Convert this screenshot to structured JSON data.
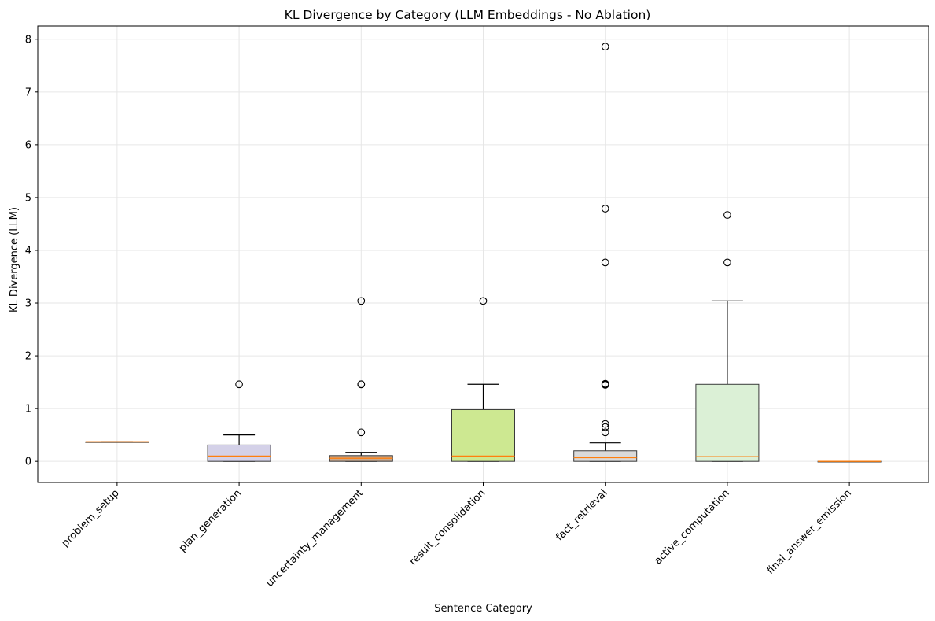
{
  "chart_data": {
    "type": "boxplot",
    "title": "KL Divergence by Category (LLM Embeddings - No Ablation)",
    "xlabel": "Sentence Category",
    "ylabel": "KL Divergence (LLM)",
    "ylim": [
      -0.4,
      8.25
    ],
    "yticks": [
      0,
      1,
      2,
      3,
      4,
      5,
      6,
      7,
      8
    ],
    "grid": true,
    "median_color": "#ff7f0e",
    "categories": [
      {
        "name": "problem_setup",
        "whisker_low": 0.37,
        "q1": 0.37,
        "median": 0.37,
        "q3": 0.37,
        "whisker_high": 0.37,
        "fliers": [],
        "color": "#c7e9c0"
      },
      {
        "name": "plan_generation",
        "whisker_low": 0.0,
        "q1": 0.0,
        "median": 0.1,
        "q3": 0.31,
        "whisker_high": 0.5,
        "fliers": [
          1.46
        ],
        "color": "#d4d1e8"
      },
      {
        "name": "uncertainty_management",
        "whisker_low": 0.0,
        "q1": 0.0,
        "median": 0.06,
        "q3": 0.11,
        "whisker_high": 0.17,
        "fliers": [
          0.55,
          1.46,
          1.46,
          3.04
        ],
        "color": "#c9a98e"
      },
      {
        "name": "result_consolidation",
        "whisker_low": 0.0,
        "q1": 0.0,
        "median": 0.1,
        "q3": 0.98,
        "whisker_high": 1.46,
        "fliers": [
          3.04
        ],
        "color": "#cde891"
      },
      {
        "name": "fact_retrieval",
        "whisker_low": 0.0,
        "q1": 0.0,
        "median": 0.07,
        "q3": 0.2,
        "whisker_high": 0.35,
        "fliers": [
          0.55,
          0.65,
          0.71,
          1.45,
          1.46,
          1.47,
          3.77,
          4.79,
          7.86
        ],
        "color": "#dadada"
      },
      {
        "name": "active_computation",
        "whisker_low": 0.0,
        "q1": 0.0,
        "median": 0.09,
        "q3": 1.46,
        "whisker_high": 3.04,
        "fliers": [
          3.77,
          4.67
        ],
        "color": "#dbf0d6"
      },
      {
        "name": "final_answer_emission",
        "whisker_low": 0.0,
        "q1": 0.0,
        "median": 0.0,
        "q3": 0.0,
        "whisker_high": 0.0,
        "fliers": [],
        "color": "#c7e9c0"
      }
    ]
  }
}
